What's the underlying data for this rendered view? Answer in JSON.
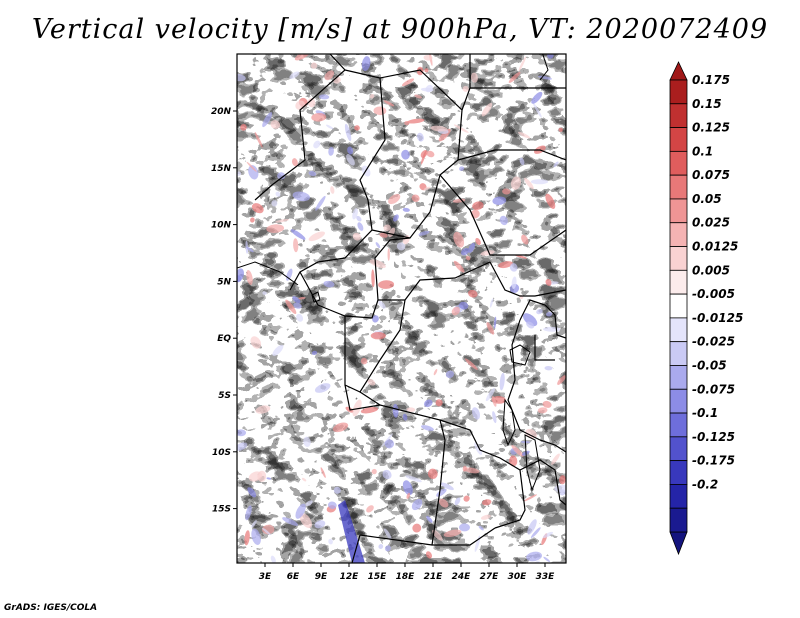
{
  "title": "Vertical velocity [m/s] at 900hPa, VT: 2020072409",
  "credit": "GrADS: IGES/COLA",
  "map": {
    "lon_labels": [
      "3E",
      "6E",
      "9E",
      "12E",
      "15E",
      "18E",
      "21E",
      "24E",
      "27E",
      "30E",
      "33E"
    ],
    "lat_labels": [
      "20N",
      "15N",
      "10N",
      "5N",
      "EQ",
      "5S",
      "10S",
      "15S"
    ]
  },
  "colorbar": {
    "labels": [
      "0.175",
      "0.15",
      "0.125",
      "0.1",
      "0.075",
      "0.05",
      "0.025",
      "0.0125",
      "0.005",
      "-0.005",
      "-0.0125",
      "-0.025",
      "-0.05",
      "-0.075",
      "-0.1",
      "-0.125",
      "-0.175",
      "-0.2"
    ],
    "colors": [
      "#aa1e1e",
      "#c03030",
      "#d34545",
      "#e05d5d",
      "#e87878",
      "#ef9595",
      "#f5b3b3",
      "#f9d2d2",
      "#fcecec",
      "#ffffff",
      "#e4e4fb",
      "#cacaf5",
      "#aaaaee",
      "#8c8ce6",
      "#6e6edb",
      "#5252cd",
      "#3838bd",
      "#2424a8",
      "#1a1a90"
    ],
    "top_arrow_color": "#a01818",
    "bottom_arrow_color": "#14147e"
  }
}
